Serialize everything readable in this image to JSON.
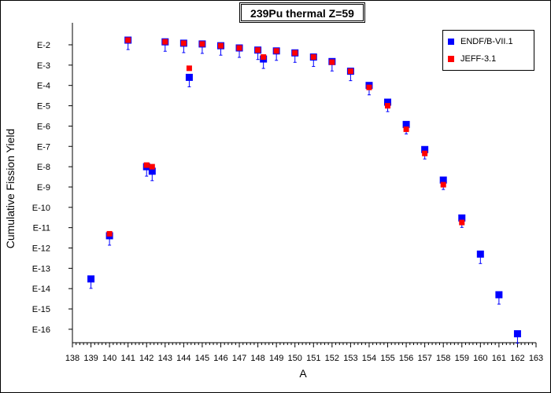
{
  "chart_data": {
    "type": "scatter",
    "title": "239Pu thermal Z=59",
    "xlabel": "A",
    "ylabel": "Cumulative Fission Yield",
    "xlim": [
      138,
      163
    ],
    "ylog": true,
    "y_tick_labels": [
      "E-2",
      "E-3",
      "E-4",
      "E-5",
      "E-6",
      "E-7",
      "E-8",
      "E-9",
      "E-10",
      "E-11",
      "E-12",
      "E-13",
      "E-14",
      "E-15",
      "E-16"
    ],
    "y_tick_exponents": [
      -2,
      -3,
      -4,
      -5,
      -6,
      -7,
      -8,
      -9,
      -10,
      -11,
      -12,
      -13,
      -14,
      -15,
      -16
    ],
    "x_ticks": [
      138,
      139,
      140,
      141,
      142,
      143,
      144,
      145,
      146,
      147,
      148,
      149,
      150,
      151,
      152,
      153,
      154,
      155,
      156,
      157,
      158,
      159,
      160,
      161,
      162,
      163
    ],
    "legend_position": "top-right",
    "series": [
      {
        "name": "ENDF/B-VII.1",
        "color": "#0000ff",
        "marker": "square",
        "points": [
          {
            "x": 139,
            "y": 3e-14
          },
          {
            "x": 140,
            "y": 4e-12
          },
          {
            "x": 141,
            "y": 0.017
          },
          {
            "x": 142,
            "y": 1e-08
          },
          {
            "x": 142.3,
            "y": 6e-09
          },
          {
            "x": 143,
            "y": 0.014
          },
          {
            "x": 144,
            "y": 0.012
          },
          {
            "x": 144.3,
            "y": 0.00025
          },
          {
            "x": 145,
            "y": 0.011
          },
          {
            "x": 146,
            "y": 0.009
          },
          {
            "x": 147,
            "y": 0.007
          },
          {
            "x": 148,
            "y": 0.0055
          },
          {
            "x": 148.3,
            "y": 0.002
          },
          {
            "x": 149,
            "y": 0.005
          },
          {
            "x": 150,
            "y": 0.004
          },
          {
            "x": 151,
            "y": 0.0025
          },
          {
            "x": 152,
            "y": 0.0015
          },
          {
            "x": 153,
            "y": 0.0005
          },
          {
            "x": 154,
            "y": 0.0001
          },
          {
            "x": 155,
            "y": 1.5e-05
          },
          {
            "x": 156,
            "y": 1.2e-06
          },
          {
            "x": 157,
            "y": 7e-08
          },
          {
            "x": 158,
            "y": 2.2e-09
          },
          {
            "x": 159,
            "y": 3e-11
          },
          {
            "x": 160,
            "y": 5e-13
          },
          {
            "x": 161,
            "y": 5e-15
          },
          {
            "x": 162,
            "y": 6e-17
          }
        ]
      },
      {
        "name": "JEFF-3.1",
        "color": "#ff0000",
        "marker": "square",
        "points": [
          {
            "x": 140,
            "y": 5e-12
          },
          {
            "x": 141,
            "y": 0.017
          },
          {
            "x": 142,
            "y": 1.2e-08
          },
          {
            "x": 142.3,
            "y": 1e-08
          },
          {
            "x": 143,
            "y": 0.014
          },
          {
            "x": 144,
            "y": 0.012
          },
          {
            "x": 144.3,
            "y": 0.0007
          },
          {
            "x": 145,
            "y": 0.011
          },
          {
            "x": 146,
            "y": 0.009
          },
          {
            "x": 147,
            "y": 0.007
          },
          {
            "x": 148,
            "y": 0.0055
          },
          {
            "x": 148.3,
            "y": 0.0025
          },
          {
            "x": 149,
            "y": 0.005
          },
          {
            "x": 150,
            "y": 0.004
          },
          {
            "x": 151,
            "y": 0.0025
          },
          {
            "x": 152,
            "y": 0.0014
          },
          {
            "x": 153,
            "y": 0.0005
          },
          {
            "x": 154,
            "y": 8e-05
          },
          {
            "x": 155,
            "y": 1e-05
          },
          {
            "x": 156,
            "y": 7e-07
          },
          {
            "x": 157,
            "y": 4.5e-08
          },
          {
            "x": 158,
            "y": 1.3e-09
          },
          {
            "x": 159,
            "y": 1.8e-11
          }
        ]
      }
    ]
  }
}
